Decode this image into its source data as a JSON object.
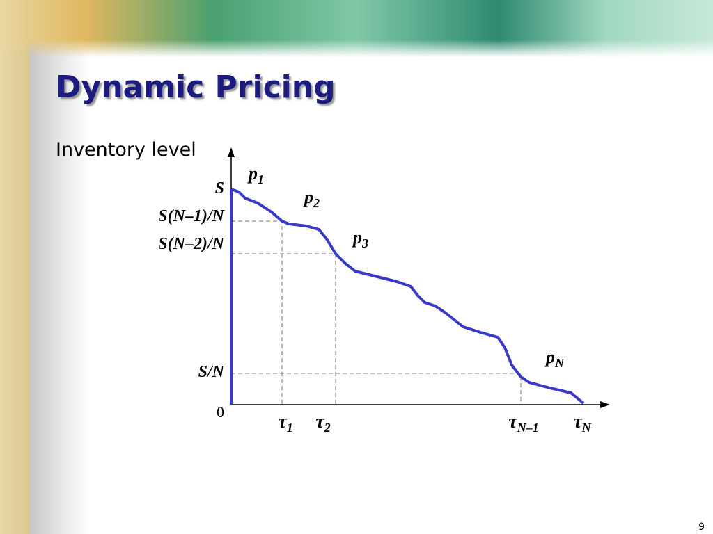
{
  "header": {
    "title": "Dynamic Pricing"
  },
  "diagram": {
    "y_axis_label": "Inventory level",
    "y_labels": [
      "S",
      "S(N–1)/N",
      "S(N–2)/N",
      "S/N",
      "0"
    ],
    "x_labels": [
      {
        "base": "τ",
        "sub": "1"
      },
      {
        "base": "τ",
        "sub": "2"
      },
      {
        "base": "τ",
        "sub": "N–1"
      },
      {
        "base": "τ",
        "sub": "N"
      }
    ],
    "price_labels": [
      {
        "base": "p",
        "sub": "1"
      },
      {
        "base": "p",
        "sub": "2"
      },
      {
        "base": "p",
        "sub": "3"
      },
      {
        "base": "p",
        "sub": "N"
      }
    ]
  },
  "footer": {
    "page_number": "9"
  }
}
